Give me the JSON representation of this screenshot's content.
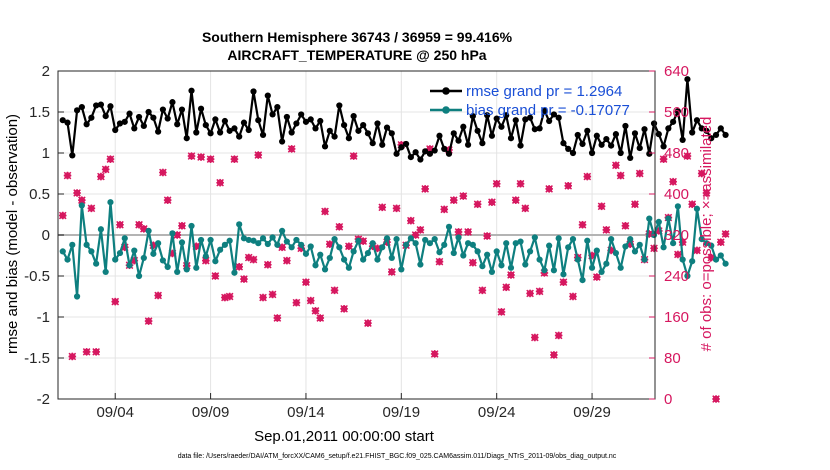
{
  "chart_data": {
    "type": "line",
    "title": "Southern Hemisphere 36743 / 36959 = 99.416%",
    "subtitle": "AIRCRAFT_TEMPERATURE @ 250 hPa",
    "xlabel": "Sep.01,2011 00:00:00 start",
    "ylabel": "rmse and bias (model - observation)",
    "y2label": "# of obs: o=possible; ×=assimilated",
    "ylim": [
      -2,
      2
    ],
    "y2lim": [
      0,
      640
    ],
    "yticks": [
      "-2",
      "-1.5",
      "-1",
      "-0.5",
      "0",
      "0.5",
      "1",
      "1.5",
      "2"
    ],
    "y2ticks": [
      "0",
      "80",
      "160",
      "240",
      "320",
      "400",
      "480",
      "560",
      "640"
    ],
    "xlim": [
      1.0,
      32.3
    ],
    "xticks": [
      {
        "value": 4,
        "label": "09/04"
      },
      {
        "value": 9,
        "label": "09/09"
      },
      {
        "value": 14,
        "label": "09/14"
      },
      {
        "value": 19,
        "label": "09/19"
      },
      {
        "value": 24,
        "label": "09/24"
      },
      {
        "value": 29,
        "label": "09/29"
      }
    ],
    "footnote": "data file: /Users/raeder/DAI/ATM_forcXX/CAM6_setup/f.e21.FHIST_BGC.f09_025.CAM6assim.011/Diags_NTrS_2011-09/obs_diag_output.nc",
    "legend": {
      "position": "top-right",
      "entries": [
        "rmse grand pr = 1.2964",
        "bias grand pr = -0.17077"
      ]
    },
    "grid": true,
    "colors": {
      "rmse": "#000000",
      "bias": "#0e7f7f",
      "obs": "#d6175f",
      "zero_line": "#b4b4b4",
      "grid": "#e4e4e4"
    },
    "x_start": 1.25,
    "x_step": 0.25,
    "series": [
      {
        "name": "rmse grand pr = 1.2964",
        "axis": "left",
        "values": [
          1.4,
          1.37,
          0.97,
          1.52,
          1.56,
          1.35,
          1.43,
          1.58,
          1.59,
          1.45,
          1.57,
          1.28,
          1.36,
          1.38,
          1.48,
          1.3,
          1.44,
          1.33,
          1.5,
          1.43,
          1.26,
          1.53,
          1.42,
          1.62,
          1.35,
          1.53,
          1.18,
          1.76,
          1.25,
          1.54,
          1.34,
          1.24,
          1.41,
          1.25,
          1.39,
          1.27,
          1.3,
          1.2,
          1.37,
          1.28,
          1.75,
          1.4,
          1.22,
          1.7,
          1.47,
          1.56,
          1.14,
          1.44,
          1.25,
          1.36,
          1.47,
          1.38,
          1.41,
          1.3,
          1.39,
          1.08,
          1.27,
          1.2,
          1.58,
          1.34,
          1.18,
          1.45,
          1.27,
          1.34,
          1.24,
          1.12,
          1.36,
          1.1,
          1.31,
          1.24,
          0.99,
          1.07,
          1.11,
          0.95,
          1.01,
          0.92,
          1.02,
          0.99,
          1.03,
          1.21,
          1.05,
          0.99,
          1.24,
          1.15,
          1.32,
          1.1,
          1.45,
          1.27,
          1.12,
          1.46,
          1.21,
          1.42,
          1.32,
          1.46,
          1.18,
          1.4,
          1.09,
          1.41,
          1.43,
          1.29,
          1.3,
          1.52,
          1.39,
          1.47,
          1.43,
          1.12,
          1.05,
          1.0,
          1.22,
          1.11,
          1.27,
          1.0,
          1.21,
          1.1,
          1.17,
          1.09,
          1.23,
          1.0,
          1.33,
          0.94,
          1.24,
          1.06,
          1.29,
          0.99,
          1.36,
          1.23,
          1.08,
          1.3,
          1.38,
          1.51,
          1.16,
          1.9,
          1.25,
          1.4,
          1.3,
          1.27,
          1.18,
          1.22,
          1.3,
          1.22
        ]
      },
      {
        "name": "bias grand pr = -0.17077",
        "axis": "left",
        "values": [
          -0.2,
          -0.3,
          -0.12,
          -0.75,
          0.36,
          -0.12,
          -0.2,
          -0.35,
          0.07,
          -0.45,
          0.4,
          -0.3,
          -0.22,
          -0.04,
          -0.37,
          -0.19,
          -0.5,
          -0.28,
          0.05,
          -0.23,
          -0.1,
          -0.31,
          -0.39,
          0.02,
          -0.45,
          -0.09,
          -0.42,
          0.11,
          -0.4,
          -0.06,
          -0.26,
          -0.06,
          -0.32,
          -0.18,
          -0.12,
          -0.07,
          -0.46,
          0.13,
          -0.04,
          -0.06,
          -0.07,
          -0.1,
          -0.04,
          -0.11,
          -0.03,
          -0.12,
          0.05,
          -0.08,
          -0.15,
          -0.06,
          -0.12,
          -0.23,
          -0.14,
          -0.37,
          -0.24,
          -0.42,
          -0.28,
          -0.05,
          -0.15,
          -0.3,
          -0.4,
          -0.2,
          -0.07,
          -0.3,
          -0.22,
          -0.1,
          -0.3,
          -0.15,
          -0.04,
          -0.28,
          -0.05,
          -0.42,
          -0.12,
          -0.04,
          -0.1,
          -0.36,
          -0.06,
          -0.1,
          -0.05,
          -0.21,
          -0.12,
          0.1,
          -0.22,
          -0.03,
          -0.25,
          -0.1,
          -0.12,
          -0.2,
          -0.38,
          -0.24,
          -0.45,
          -0.2,
          -0.37,
          -0.1,
          -0.4,
          -0.1,
          -0.08,
          -0.36,
          -0.2,
          -0.03,
          -0.3,
          -0.43,
          -0.13,
          -0.43,
          -0.04,
          -0.48,
          -0.15,
          -0.05,
          -0.3,
          -0.55,
          -0.07,
          -0.4,
          -0.19,
          -0.45,
          -0.35,
          -0.05,
          -0.22,
          -0.4,
          -0.14,
          -0.05,
          -0.2,
          -0.12,
          -0.3,
          0.2,
          0.0,
          0.16,
          -0.15,
          0.2,
          -0.1,
          0.35,
          -0.3,
          -0.5,
          -0.32,
          0.32,
          -0.05,
          -0.1,
          -0.13,
          -0.3,
          -0.25,
          -0.35
        ]
      },
      {
        "name": "# of obs assimilated",
        "axis": "right",
        "values": [
          358,
          436,
          83,
          402,
          388,
          92,
          372,
          92,
          434,
          448,
          468,
          190,
          340,
          296,
          261,
          270,
          340,
          332,
          152,
          300,
          202,
          442,
          388,
          284,
          320,
          338,
          260,
          474,
          298,
          472,
          270,
          468,
          240,
          422,
          198,
          200,
          468,
          258,
          234,
          276,
          272,
          476,
          198,
          262,
          204,
          158,
          296,
          270,
          488,
          188,
          294,
          228,
          192,
          172,
          158,
          366,
          302,
          212,
          336,
          176,
          298,
          474,
          312,
          308,
          148,
          298,
          294,
          374,
          306,
          248,
          372,
          496,
          300,
          348,
          320,
          330,
          410,
          488,
          88,
          268,
          370,
          486,
          388,
          326,
          396,
          326,
          266,
          380,
          212,
          318,
          384,
          420,
          170,
          218,
          242,
          388,
          420,
          372,
          206,
          120,
          210,
          246,
          410,
          86,
          124,
          228,
          416,
          200,
          276,
          340,
          434,
          280,
          238,
          376,
          330,
          290,
          456,
          436,
          338,
          302,
          380,
          440,
          272,
          322,
          294,
          328,
          468,
          354,
          424,
          282,
          306,
          474,
          380,
          290,
          440,
          402,
          276,
          0,
          306,
          322
        ]
      },
      {
        "name": "# of obs possible",
        "axis": "right",
        "values": [
          358,
          436,
          83,
          402,
          388,
          92,
          372,
          92,
          434,
          448,
          468,
          190,
          340,
          296,
          261,
          270,
          340,
          332,
          152,
          300,
          202,
          442,
          388,
          284,
          320,
          338,
          260,
          474,
          298,
          472,
          270,
          468,
          240,
          422,
          198,
          200,
          468,
          258,
          234,
          276,
          272,
          476,
          198,
          262,
          204,
          158,
          296,
          270,
          488,
          188,
          294,
          228,
          192,
          172,
          158,
          366,
          302,
          212,
          336,
          176,
          298,
          474,
          312,
          308,
          148,
          298,
          294,
          374,
          306,
          248,
          372,
          496,
          300,
          348,
          320,
          330,
          410,
          488,
          88,
          268,
          370,
          486,
          388,
          326,
          396,
          326,
          266,
          380,
          212,
          318,
          384,
          420,
          170,
          218,
          242,
          388,
          420,
          372,
          206,
          120,
          210,
          246,
          410,
          86,
          124,
          228,
          416,
          200,
          276,
          340,
          434,
          280,
          238,
          376,
          330,
          290,
          456,
          436,
          338,
          302,
          380,
          440,
          272,
          322,
          294,
          328,
          468,
          354,
          424,
          282,
          306,
          474,
          380,
          290,
          440,
          402,
          276,
          0,
          306,
          322
        ]
      }
    ]
  }
}
